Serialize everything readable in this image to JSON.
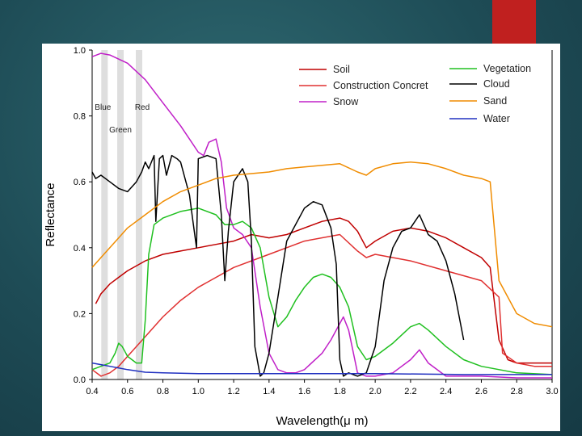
{
  "slide": {
    "accent_color": "#c0201f"
  },
  "chart_data": {
    "type": "line",
    "xlabel": "Wavelength(μ m)",
    "ylabel": "Reflectance",
    "xlim": [
      0.4,
      3.0
    ],
    "ylim": [
      0.0,
      1.0
    ],
    "x_ticks": [
      0.4,
      0.6,
      0.8,
      1.0,
      1.2,
      1.4,
      1.6,
      1.8,
      2.0,
      2.2,
      2.4,
      2.6,
      2.8,
      3.0
    ],
    "y_ticks": [
      0.0,
      0.2,
      0.4,
      0.6,
      0.8,
      1.0
    ],
    "x_tick_labels": [
      "0.4",
      "0.6",
      "0.8",
      "1.0",
      "1.2",
      "1.4",
      "1.6",
      "1.8",
      "2.0",
      "2.2",
      "2.4",
      "2.6",
      "2.8",
      "3.0"
    ],
    "y_tick_labels": [
      "0.0",
      "0.2",
      "0.4",
      "0.6",
      "0.8",
      "1.0"
    ],
    "bands": [
      {
        "name": "Blue",
        "center": 0.47,
        "label": "Blue"
      },
      {
        "name": "Green",
        "center": 0.56,
        "label": "Green"
      },
      {
        "name": "Red",
        "center": 0.665,
        "label": "Red"
      }
    ],
    "band_color": "#d3d3d3",
    "series": [
      {
        "name": "Soil",
        "color": "#c00000",
        "x": [
          0.42,
          0.45,
          0.5,
          0.55,
          0.6,
          0.7,
          0.8,
          0.9,
          1.0,
          1.1,
          1.2,
          1.3,
          1.4,
          1.5,
          1.6,
          1.7,
          1.8,
          1.85,
          1.9,
          1.95,
          2.0,
          2.1,
          2.2,
          2.3,
          2.4,
          2.5,
          2.6,
          2.65,
          2.7,
          2.75,
          2.8,
          2.9,
          3.0
        ],
        "y": [
          0.23,
          0.26,
          0.29,
          0.31,
          0.33,
          0.36,
          0.38,
          0.39,
          0.4,
          0.41,
          0.42,
          0.44,
          0.43,
          0.44,
          0.46,
          0.48,
          0.49,
          0.48,
          0.45,
          0.4,
          0.42,
          0.45,
          0.46,
          0.45,
          0.43,
          0.4,
          0.37,
          0.34,
          0.12,
          0.06,
          0.05,
          0.05,
          0.05
        ]
      },
      {
        "name": "Construction Concret",
        "color": "#e03030",
        "x": [
          0.4,
          0.45,
          0.5,
          0.55,
          0.6,
          0.7,
          0.8,
          0.9,
          1.0,
          1.2,
          1.4,
          1.6,
          1.8,
          1.9,
          1.95,
          2.0,
          2.2,
          2.4,
          2.6,
          2.7,
          2.72,
          2.8,
          2.9,
          3.0
        ],
        "y": [
          0.03,
          0.01,
          0.02,
          0.04,
          0.07,
          0.13,
          0.19,
          0.24,
          0.28,
          0.34,
          0.38,
          0.42,
          0.44,
          0.39,
          0.37,
          0.38,
          0.36,
          0.33,
          0.3,
          0.25,
          0.08,
          0.05,
          0.04,
          0.04
        ]
      },
      {
        "name": "Snow",
        "color": "#c020c8",
        "x": [
          0.4,
          0.45,
          0.5,
          0.6,
          0.7,
          0.8,
          0.9,
          0.95,
          1.0,
          1.03,
          1.06,
          1.1,
          1.13,
          1.16,
          1.2,
          1.25,
          1.3,
          1.35,
          1.4,
          1.45,
          1.5,
          1.55,
          1.6,
          1.7,
          1.75,
          1.8,
          1.82,
          1.85,
          1.9,
          1.95,
          2.0,
          2.1,
          2.2,
          2.25,
          2.3,
          2.4,
          2.6,
          2.8,
          3.0
        ],
        "y": [
          0.98,
          0.99,
          0.985,
          0.96,
          0.91,
          0.84,
          0.77,
          0.73,
          0.69,
          0.68,
          0.72,
          0.73,
          0.66,
          0.52,
          0.46,
          0.44,
          0.4,
          0.22,
          0.08,
          0.03,
          0.02,
          0.02,
          0.03,
          0.08,
          0.12,
          0.17,
          0.19,
          0.15,
          0.02,
          0.01,
          0.01,
          0.02,
          0.06,
          0.09,
          0.05,
          0.01,
          0.01,
          0.005,
          0.005
        ]
      },
      {
        "name": "Vegetation",
        "color": "#20c020",
        "x": [
          0.4,
          0.45,
          0.5,
          0.53,
          0.55,
          0.57,
          0.6,
          0.65,
          0.68,
          0.7,
          0.72,
          0.75,
          0.8,
          0.9,
          1.0,
          1.1,
          1.15,
          1.2,
          1.25,
          1.3,
          1.35,
          1.4,
          1.45,
          1.5,
          1.55,
          1.6,
          1.65,
          1.7,
          1.75,
          1.8,
          1.85,
          1.9,
          1.95,
          2.0,
          2.1,
          2.2,
          2.25,
          2.3,
          2.4,
          2.5,
          2.6,
          2.8,
          3.0
        ],
        "y": [
          0.03,
          0.04,
          0.05,
          0.08,
          0.11,
          0.1,
          0.07,
          0.05,
          0.05,
          0.18,
          0.38,
          0.47,
          0.49,
          0.51,
          0.52,
          0.5,
          0.47,
          0.47,
          0.48,
          0.46,
          0.4,
          0.25,
          0.16,
          0.19,
          0.24,
          0.28,
          0.31,
          0.32,
          0.31,
          0.28,
          0.22,
          0.1,
          0.06,
          0.07,
          0.11,
          0.16,
          0.17,
          0.15,
          0.1,
          0.06,
          0.04,
          0.02,
          0.015
        ]
      },
      {
        "name": "Cloud",
        "color": "#000000",
        "x": [
          0.4,
          0.42,
          0.45,
          0.5,
          0.55,
          0.6,
          0.65,
          0.68,
          0.7,
          0.72,
          0.75,
          0.76,
          0.78,
          0.8,
          0.82,
          0.85,
          0.88,
          0.9,
          0.93,
          0.95,
          0.97,
          0.99,
          1.0,
          1.05,
          1.1,
          1.13,
          1.15,
          1.17,
          1.2,
          1.25,
          1.28,
          1.3,
          1.32,
          1.35,
          1.37,
          1.4,
          1.45,
          1.5,
          1.6,
          1.65,
          1.7,
          1.75,
          1.78,
          1.8,
          1.82,
          1.85,
          1.9,
          1.95,
          2.0,
          2.05,
          2.1,
          2.15,
          2.2,
          2.25,
          2.3,
          2.35,
          2.4,
          2.45,
          2.5
        ],
        "y": [
          0.63,
          0.61,
          0.62,
          0.6,
          0.58,
          0.57,
          0.6,
          0.63,
          0.66,
          0.64,
          0.68,
          0.48,
          0.67,
          0.68,
          0.62,
          0.68,
          0.67,
          0.66,
          0.6,
          0.56,
          0.48,
          0.4,
          0.67,
          0.68,
          0.67,
          0.5,
          0.3,
          0.45,
          0.6,
          0.64,
          0.6,
          0.42,
          0.1,
          0.01,
          0.02,
          0.08,
          0.25,
          0.42,
          0.52,
          0.54,
          0.53,
          0.46,
          0.35,
          0.06,
          0.01,
          0.02,
          0.01,
          0.02,
          0.1,
          0.3,
          0.4,
          0.45,
          0.46,
          0.5,
          0.44,
          0.42,
          0.36,
          0.26,
          0.12
        ]
      },
      {
        "name": "Sand",
        "color": "#f08c00",
        "x": [
          0.4,
          0.45,
          0.5,
          0.55,
          0.6,
          0.7,
          0.8,
          0.9,
          1.0,
          1.1,
          1.2,
          1.3,
          1.4,
          1.5,
          1.6,
          1.7,
          1.8,
          1.9,
          1.95,
          2.0,
          2.1,
          2.2,
          2.3,
          2.4,
          2.5,
          2.6,
          2.65,
          2.7,
          2.8,
          2.9,
          3.0
        ],
        "y": [
          0.34,
          0.37,
          0.4,
          0.43,
          0.46,
          0.5,
          0.54,
          0.57,
          0.59,
          0.61,
          0.62,
          0.625,
          0.63,
          0.64,
          0.645,
          0.65,
          0.655,
          0.63,
          0.62,
          0.64,
          0.655,
          0.66,
          0.655,
          0.64,
          0.62,
          0.61,
          0.6,
          0.3,
          0.2,
          0.17,
          0.16
        ]
      },
      {
        "name": "Water",
        "color": "#2030c0",
        "x": [
          0.4,
          0.45,
          0.5,
          0.55,
          0.6,
          0.7,
          0.8,
          1.0,
          1.5,
          2.0,
          2.5,
          3.0
        ],
        "y": [
          0.05,
          0.045,
          0.04,
          0.035,
          0.03,
          0.022,
          0.02,
          0.018,
          0.018,
          0.018,
          0.015,
          0.015
        ]
      }
    ],
    "legend": {
      "placement": "top-right"
    }
  }
}
